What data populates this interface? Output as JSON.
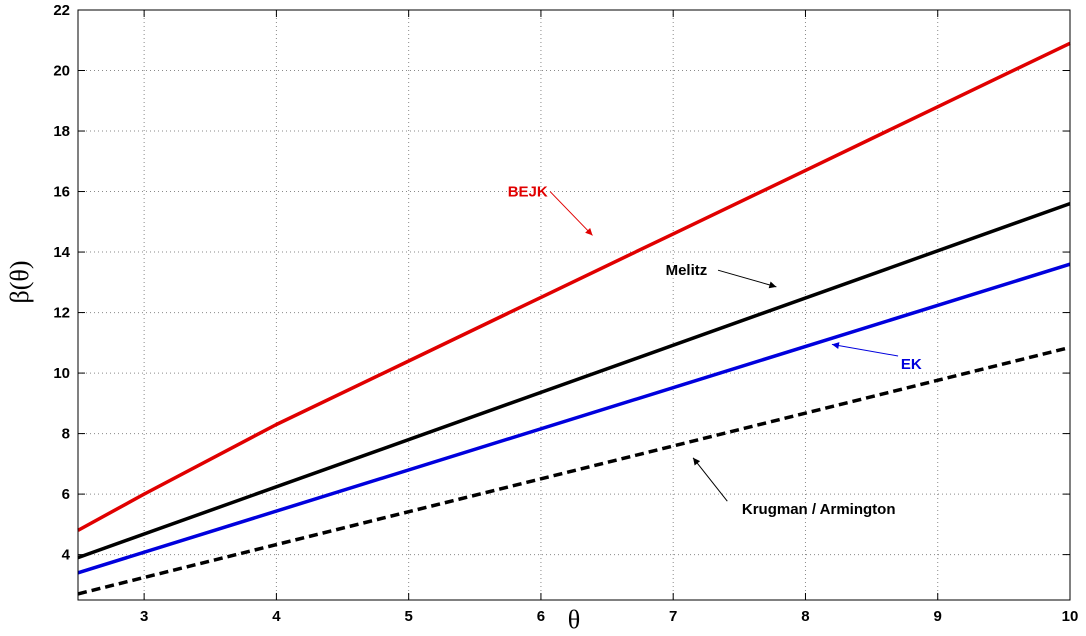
{
  "chart_data": {
    "type": "line",
    "xlabel": "θ",
    "ylabel": "β(θ)",
    "xlim": [
      2.5,
      10
    ],
    "ylim": [
      2.5,
      22
    ],
    "xticks": [
      3,
      4,
      5,
      6,
      7,
      8,
      9,
      10
    ],
    "yticks": [
      4,
      6,
      8,
      10,
      12,
      14,
      16,
      18,
      20,
      22
    ],
    "grid": true,
    "series": [
      {
        "name": "BEJK",
        "color": "#e00000",
        "dash": "solid",
        "x": [
          2.5,
          3,
          4,
          5,
          6,
          7,
          8,
          9,
          10
        ],
        "y": [
          4.8,
          6.0,
          8.3,
          10.4,
          12.5,
          14.6,
          16.7,
          18.8,
          20.9
        ]
      },
      {
        "name": "Melitz",
        "color": "#000000",
        "dash": "solid",
        "x": [
          2.5,
          10
        ],
        "y": [
          3.9,
          15.6
        ]
      },
      {
        "name": "EK",
        "color": "#0000dd",
        "dash": "solid",
        "x": [
          2.5,
          10
        ],
        "y": [
          3.4,
          13.6
        ]
      },
      {
        "name": "Krugman / Armington",
        "color": "#000000",
        "dash": "dashed",
        "x": [
          2.5,
          10
        ],
        "y": [
          2.7,
          10.85
        ]
      }
    ],
    "annotations": [
      {
        "text": "BEJK",
        "color": "#e00000",
        "series": 0,
        "x": 5.9,
        "y": 16.0,
        "arrow_to": [
          6.39,
          14.55
        ]
      },
      {
        "text": "Melitz",
        "color": "#000000",
        "series": 1,
        "x": 7.1,
        "y": 13.4,
        "arrow_to": [
          7.78,
          12.85
        ]
      },
      {
        "text": "EK",
        "color": "#0000dd",
        "series": 2,
        "x": 8.8,
        "y": 10.3,
        "arrow_to": [
          8.2,
          10.95
        ]
      },
      {
        "text": "Krugman / Armington",
        "color": "#000000",
        "series": 3,
        "x": 8.1,
        "y": 5.5,
        "arrow_to": [
          7.15,
          7.2
        ]
      }
    ]
  }
}
